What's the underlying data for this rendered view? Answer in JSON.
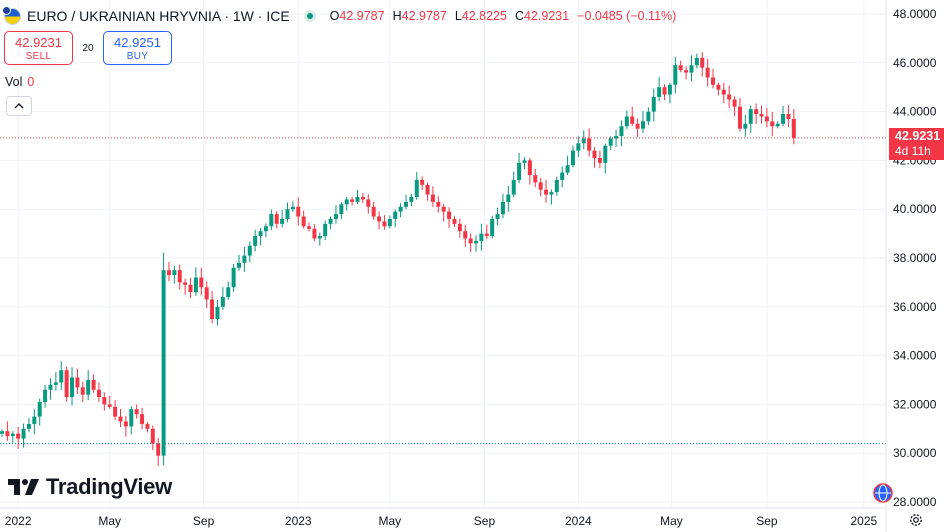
{
  "header": {
    "symbol_title": "EURO / UKRAINIAN HRYVNIA · 1W · ICE",
    "ohlc": [
      {
        "label": "O",
        "value": "42.9787"
      },
      {
        "label": "H",
        "value": "42.9787"
      },
      {
        "label": "L",
        "value": "42.8225"
      },
      {
        "label": "C",
        "value": "42.9231"
      },
      {
        "label": "",
        "value": "−0.0485 (−0.11%)"
      }
    ]
  },
  "trade": {
    "sell_price": "42.9231",
    "sell_label": "SELL",
    "spread": "20",
    "buy_price": "42.9251",
    "buy_label": "BUY"
  },
  "volume": {
    "label": "Vol",
    "value": "0"
  },
  "logo": {
    "text": "TradingView"
  },
  "last_price": {
    "value": "42.9231",
    "countdown": "4d 11h"
  },
  "colors": {
    "up": "#089981",
    "down": "#f23645",
    "accent": "#2962ff"
  },
  "icons": [
    "flag-icon",
    "live-status-icon",
    "chevron-up-icon",
    "tradingview-logo-icon",
    "globe-icon",
    "gear-icon"
  ],
  "chart_data": {
    "type": "candlestick",
    "ylim": [
      28,
      48
    ],
    "xlim": [
      "2021-12-13",
      "2025-01-27"
    ],
    "y_ticks": [
      "28.0000",
      "30.0000",
      "32.0000",
      "34.0000",
      "36.0000",
      "38.0000",
      "40.0000",
      "42.0000",
      "44.0000",
      "46.0000",
      "48.0000"
    ],
    "x_ticks": [
      {
        "label": "2022",
        "date": "2022-01-03"
      },
      {
        "label": "May",
        "date": "2022-05-02"
      },
      {
        "label": "Sep",
        "date": "2022-09-01"
      },
      {
        "label": "2023",
        "date": "2023-01-02"
      },
      {
        "label": "May",
        "date": "2023-05-01"
      },
      {
        "label": "Sep",
        "date": "2023-09-01"
      },
      {
        "label": "2024",
        "date": "2024-01-01"
      },
      {
        "label": "May",
        "date": "2024-05-01"
      },
      {
        "label": "Sep",
        "date": "2024-09-02"
      },
      {
        "label": "2025",
        "date": "2025-01-06"
      }
    ],
    "last_price": 42.9231,
    "reference_line": 30.4,
    "start_week": "2021-12-13",
    "closes": [
      30.9,
      30.7,
      30.8,
      30.6,
      31.0,
      31.2,
      31.5,
      32.1,
      32.6,
      32.8,
      32.9,
      33.4,
      32.3,
      33.1,
      32.7,
      32.4,
      33.0,
      32.6,
      32.3,
      32.0,
      31.9,
      31.5,
      31.3,
      31.1,
      31.8,
      31.6,
      31.2,
      31.0,
      30.4,
      29.9,
      37.5,
      37.3,
      37.5,
      37.0,
      36.9,
      36.6,
      37.2,
      36.8,
      36.3,
      35.5,
      36.0,
      36.4,
      36.8,
      37.6,
      37.8,
      38.1,
      38.5,
      38.9,
      39.1,
      39.3,
      39.8,
      39.4,
      39.6,
      40.0,
      40.1,
      39.7,
      39.3,
      39.2,
      38.8,
      38.9,
      39.4,
      39.6,
      39.8,
      40.2,
      40.4,
      40.3,
      40.5,
      40.4,
      40.1,
      39.7,
      39.5,
      39.3,
      39.6,
      39.9,
      40.1,
      40.3,
      40.5,
      41.2,
      41.0,
      40.6,
      40.3,
      40.1,
      39.9,
      39.6,
      39.4,
      39.1,
      38.8,
      38.6,
      38.7,
      39.0,
      38.9,
      39.6,
      39.8,
      40.3,
      40.6,
      41.2,
      41.9,
      42.0,
      41.4,
      41.1,
      40.8,
      40.6,
      40.7,
      41.2,
      41.5,
      41.8,
      42.4,
      42.7,
      42.9,
      42.4,
      42.1,
      41.9,
      42.6,
      42.9,
      43.0,
      43.4,
      43.8,
      43.5,
      43.3,
      43.6,
      44.0,
      44.6,
      45.0,
      44.7,
      45.1,
      45.9,
      45.7,
      45.6,
      45.9,
      46.2,
      45.8,
      45.4,
      45.1,
      44.9,
      44.7,
      44.5,
      44.2,
      43.3,
      43.5,
      44.1,
      43.9,
      43.8,
      43.6,
      43.4,
      43.5,
      43.9,
      43.7,
      42.9231
    ]
  }
}
